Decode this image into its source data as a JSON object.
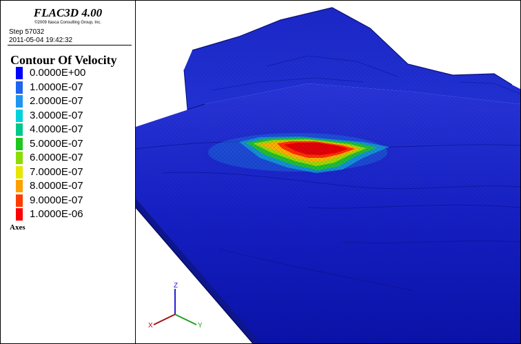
{
  "header": {
    "app_title": "FLAC3D 4.00",
    "copyright": "©2009 Itasca Consulting Group, Inc.",
    "step": "Step 57032",
    "datetime": "2011-05-04 19:42:32"
  },
  "legend": {
    "title": "Contour Of Velocity",
    "entries": [
      {
        "label": "0.0000E+00",
        "color": "#0000ff"
      },
      {
        "label": "1.0000E-07",
        "color": "#1e64f0"
      },
      {
        "label": "2.0000E-07",
        "color": "#1e96f0"
      },
      {
        "label": "3.0000E-07",
        "color": "#00d2dc"
      },
      {
        "label": "4.0000E-07",
        "color": "#00c88c"
      },
      {
        "label": "5.0000E-07",
        "color": "#1ec81e"
      },
      {
        "label": "6.0000E-07",
        "color": "#8cdc00"
      },
      {
        "label": "7.0000E-07",
        "color": "#e6e600"
      },
      {
        "label": "8.0000E-07",
        "color": "#ffa000"
      },
      {
        "label": "9.0000E-07",
        "color": "#ff3c00"
      },
      {
        "label": "1.0000E-06",
        "color": "#ff0000"
      }
    ]
  },
  "axes": {
    "label": "Axes",
    "z_label": "Z",
    "y_label": "Y",
    "x_label": "X"
  }
}
